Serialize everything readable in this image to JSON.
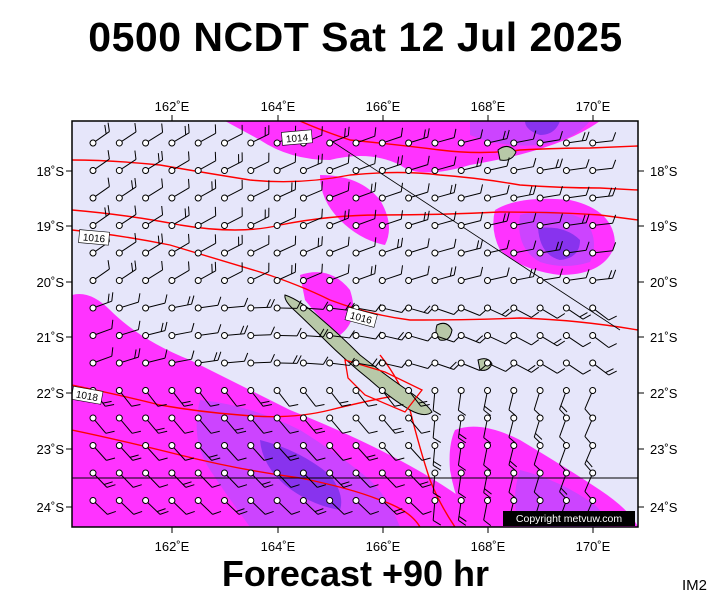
{
  "header": {
    "title": "0500 NCDT Sat 12 Jul 2025"
  },
  "footer": {
    "forecast_label": "Forecast +90 hr",
    "image_tag": "IM2"
  },
  "map": {
    "x_ticks": [
      "162˚E",
      "164˚E",
      "166˚E",
      "168˚E",
      "170˚E"
    ],
    "y_ticks": [
      "18˚S",
      "19˚S",
      "20˚S",
      "21˚S",
      "22˚S",
      "23˚S",
      "24˚S"
    ],
    "isobar_labels": [
      "1014",
      "1016",
      "1016",
      "1018"
    ],
    "copyright": "Copyright metvuw.com",
    "colors": {
      "background": "#e6e6fa",
      "precip_light": "#ff00ff",
      "precip_medium": "#c830ff",
      "precip_heavy": "#8a2be2",
      "isobar": "#ff0000",
      "land": "#b8c8a8"
    }
  }
}
